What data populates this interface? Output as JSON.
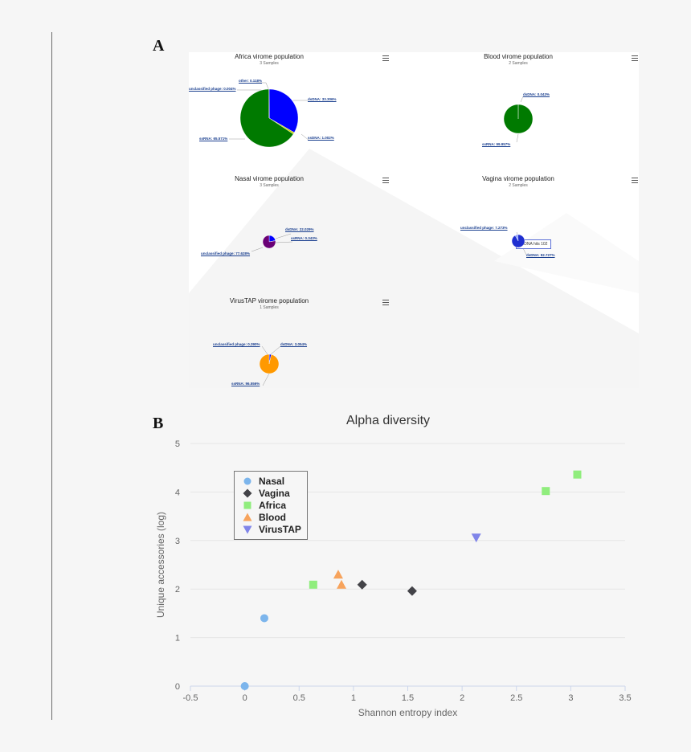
{
  "panel_a": {
    "letter": "A",
    "pies": [
      {
        "title": "Africa virome population",
        "subtitle": "3 Samples",
        "slices": [
          {
            "name": "dsDNA",
            "value": 33.306,
            "color": "#0000ff"
          },
          {
            "name": "ssDNA",
            "value": 1.002,
            "color": "#c8d400"
          },
          {
            "name": "ssRNA",
            "value": 65.571,
            "color": "#007a00"
          },
          {
            "name": "unclassified phage",
            "value": 0.004,
            "color": "#7a0088"
          },
          {
            "name": "other",
            "value": 0.118,
            "color": "#1a1a8f"
          }
        ],
        "labels": [
          "other: 0.118%",
          "unclassified phage: 0.004%",
          "dsDNA: 33.306%",
          "ssRNA: 65.571%",
          "ssDNA: 1.002%"
        ]
      },
      {
        "title": "Blood virome population",
        "subtitle": "2 Samples",
        "slices": [
          {
            "name": "dsDNA",
            "value": 0.043,
            "color": "#0000ff"
          },
          {
            "name": "ssRNA",
            "value": 99.957,
            "color": "#007a00"
          }
        ],
        "labels": [
          "dsDNA: 0.043%",
          "ssRNA: 99.957%"
        ]
      },
      {
        "title": "Nasal virome population",
        "subtitle": "3 Samples",
        "slices": [
          {
            "name": "dsDNA",
            "value": 22.029,
            "color": "#0000ff"
          },
          {
            "name": "ssRNA",
            "value": 0.343,
            "color": "#00aa00"
          },
          {
            "name": "unclassified phage",
            "value": 77.628,
            "color": "#6a0075"
          }
        ],
        "labels": [
          "dsDNA: 22.029%",
          "ssRNA: 0.343%",
          "unclassified phage: 77.628%"
        ]
      },
      {
        "title": "Vagina virome population",
        "subtitle": "2 Samples",
        "slices": [
          {
            "name": "unclassified phage",
            "value": 7.273,
            "color": "#8da0ff"
          },
          {
            "name": "dsDNA",
            "value": 92.727,
            "color": "#1f2fd0"
          }
        ],
        "labels": [
          "unclassified phage: 7.273%",
          "dsDNA: 92.727%"
        ],
        "tooltip": "dsDNA hits 102"
      },
      {
        "title": "VirusTAP virome population",
        "subtitle": "1 Samples",
        "slices": [
          {
            "name": "unclassified phage",
            "value": 0.39,
            "color": "#7a0088"
          },
          {
            "name": "dsDNA",
            "value": 3.054,
            "color": "#0000ff"
          },
          {
            "name": "ssRNA",
            "value": 96.556,
            "color": "#ff9900"
          }
        ],
        "labels": [
          "unclassified phage: 0.390%",
          "dsDNA: 3.054%",
          "ssRNA: 96.556%"
        ]
      }
    ]
  },
  "panel_b": {
    "letter": "B"
  },
  "chart_data": {
    "type": "scatter",
    "title": "Alpha diversity",
    "xlabel": "Shannon entropy index",
    "ylabel": "Unique accessories (log)",
    "xlim": [
      -0.5,
      3.5
    ],
    "ylim": [
      0,
      5
    ],
    "x_ticks": [
      "-0.5",
      "0",
      "0.5",
      "1",
      "1.5",
      "2",
      "2.5",
      "3",
      "3.5"
    ],
    "y_ticks": [
      "0",
      "1",
      "2",
      "3",
      "4",
      "5"
    ],
    "grid": "horizontal",
    "legend_position": "top-left",
    "series": [
      {
        "name": "Nasal",
        "marker": "circle",
        "color": "#7cb5ec",
        "points": [
          [
            0.0,
            0.0
          ],
          [
            0.18,
            1.4
          ]
        ]
      },
      {
        "name": "Vagina",
        "marker": "diamond",
        "color": "#434348",
        "points": [
          [
            1.08,
            2.09
          ],
          [
            1.54,
            1.96
          ]
        ]
      },
      {
        "name": "Africa",
        "marker": "square",
        "color": "#90ed7d",
        "points": [
          [
            0.63,
            2.09
          ],
          [
            2.77,
            4.02
          ],
          [
            3.06,
            4.36
          ]
        ]
      },
      {
        "name": "Blood",
        "marker": "triangle",
        "color": "#f7a35c",
        "points": [
          [
            0.86,
            2.3
          ],
          [
            0.89,
            2.09
          ]
        ]
      },
      {
        "name": "VirusTAP",
        "marker": "triangle-down",
        "color": "#8085e9",
        "points": [
          [
            2.13,
            3.06
          ]
        ]
      }
    ]
  }
}
